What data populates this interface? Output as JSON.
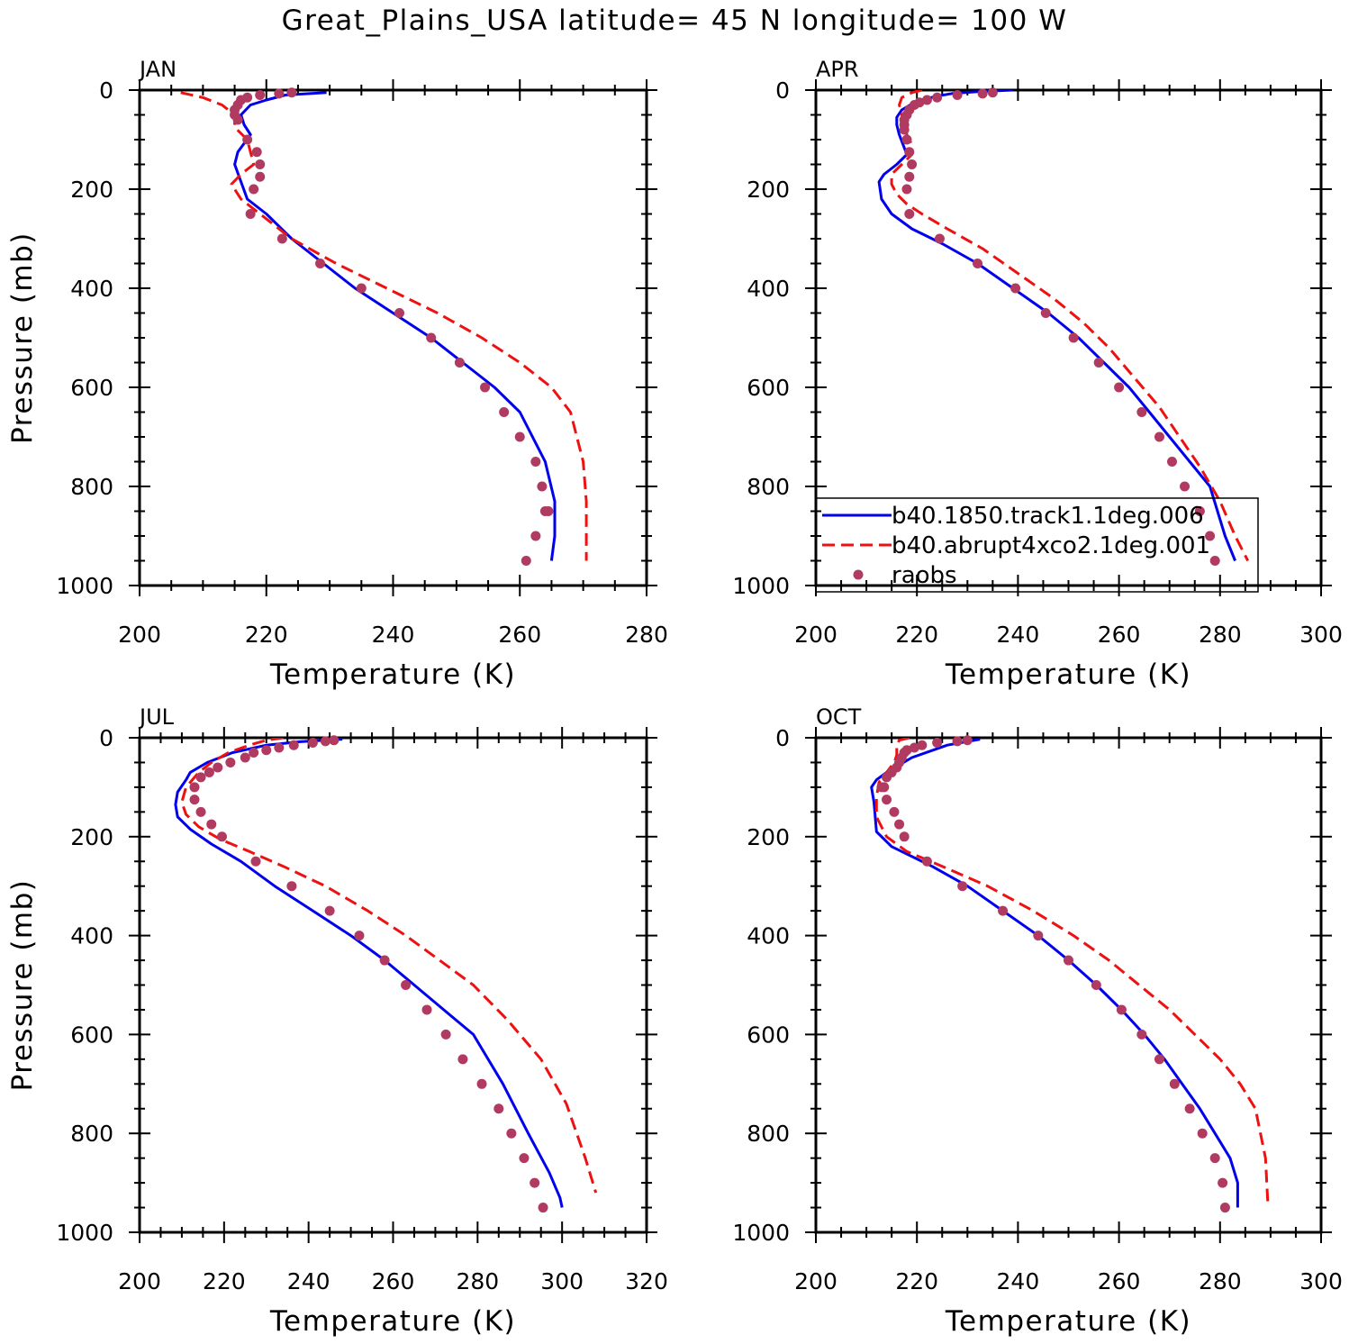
{
  "title": "Great_Plains_USA  latitude= 45 N longitude= 100 W",
  "legend": {
    "entries": [
      {
        "label": "b40.1850.track1.1deg.006",
        "color": "#0000ee",
        "style": "solid"
      },
      {
        "label": "b40.abrupt4xco2.1deg.001",
        "color": "#ee1111",
        "style": "dashed"
      },
      {
        "label": "raobs",
        "color": "#b03a60",
        "style": "marker"
      }
    ]
  },
  "chart_data": [
    {
      "type": "line",
      "panel": "JAN",
      "xlabel": "Temperature (K)",
      "ylabel": "Pressure (mb)",
      "xlim": [
        200,
        280
      ],
      "ylim": [
        1000,
        0
      ],
      "y_inverted": true,
      "xticks": [
        200,
        220,
        240,
        260,
        280
      ],
      "yticks": [
        0,
        200,
        400,
        600,
        800,
        1000
      ],
      "series": [
        {
          "name": "b40.1850.track1.1deg.006",
          "x": [
            229.5,
            223,
            220,
            217.5,
            216,
            216.5,
            217.5,
            215.5,
            215,
            217,
            220,
            224,
            229,
            234,
            240,
            246,
            251,
            256,
            260,
            264,
            265.5,
            265.5,
            265
          ],
          "y": [
            5,
            10,
            20,
            30,
            50,
            70,
            90,
            125,
            150,
            220,
            250,
            300,
            350,
            400,
            450,
            500,
            550,
            600,
            650,
            750,
            830,
            900,
            950
          ]
        },
        {
          "name": "b40.abrupt4xco2.1deg.001",
          "x": [
            206.5,
            210,
            213,
            215,
            215,
            217,
            218,
            216,
            214.5,
            216,
            219,
            224,
            231,
            239,
            247,
            254,
            260,
            265,
            268,
            270,
            270.5,
            270.5
          ],
          "y": [
            5,
            15,
            30,
            50,
            75,
            100,
            150,
            170,
            190,
            220,
            250,
            300,
            350,
            400,
            450,
            500,
            550,
            600,
            650,
            750,
            830,
            950
          ]
        },
        {
          "name": "raobs",
          "x": [
            224,
            222,
            219,
            217,
            216,
            215.5,
            215,
            215,
            215.5,
            217,
            218.5,
            219,
            219,
            218,
            217.5,
            222.5,
            228.5,
            235,
            241,
            246,
            250.5,
            254.5,
            257.5,
            260,
            262.5,
            263.5,
            264,
            264.5,
            262.5,
            261
          ],
          "y": [
            5,
            7,
            10,
            15,
            20,
            30,
            40,
            50,
            60,
            100,
            125,
            150,
            175,
            200,
            250,
            300,
            350,
            400,
            450,
            500,
            550,
            600,
            650,
            700,
            750,
            800,
            850,
            850,
            900,
            950
          ]
        }
      ]
    },
    {
      "type": "line",
      "panel": "APR",
      "xlabel": "Temperature (K)",
      "ylabel": "",
      "xlim": [
        200,
        300
      ],
      "ylim": [
        1000,
        0
      ],
      "y_inverted": true,
      "xticks": [
        200,
        220,
        240,
        260,
        280,
        300
      ],
      "yticks": [
        0,
        200,
        400,
        600,
        800,
        1000
      ],
      "series": [
        {
          "name": "b40.1850.track1.1deg.006",
          "x": [
            239,
            232,
            227,
            224,
            221,
            219,
            217,
            216,
            216,
            216.5,
            218,
            216,
            213.5,
            212.5,
            213,
            215,
            219,
            225,
            232,
            239,
            246,
            252,
            257,
            262,
            266,
            270,
            274,
            278,
            281,
            283
          ],
          "y": [
            0,
            3,
            7,
            12,
            20,
            28,
            40,
            55,
            70,
            90,
            130,
            150,
            170,
            185,
            220,
            250,
            280,
            310,
            350,
            400,
            450,
            500,
            550,
            600,
            650,
            700,
            750,
            800,
            900,
            950
          ]
        },
        {
          "name": "b40.abrupt4xco2.1deg.001",
          "x": [
            221,
            219,
            217,
            216.5,
            217,
            217.5,
            218,
            219,
            219,
            217,
            215,
            215,
            216,
            218,
            221,
            226,
            233,
            240,
            247,
            253,
            258,
            263,
            268,
            272,
            276,
            280,
            283,
            285.5
          ],
          "y": [
            0,
            5,
            15,
            30,
            50,
            70,
            90,
            110,
            130,
            150,
            170,
            190,
            210,
            230,
            250,
            280,
            320,
            370,
            420,
            470,
            520,
            580,
            640,
            700,
            760,
            830,
            900,
            950
          ]
        },
        {
          "name": "raobs",
          "x": [
            235,
            233,
            228,
            224,
            222,
            220.5,
            219.5,
            218.5,
            218,
            217.5,
            217.5,
            217.5,
            218,
            218.5,
            219,
            218.5,
            218,
            218.5,
            224.5,
            232,
            239.5,
            245.5,
            251,
            256,
            260,
            264.5,
            268,
            270.5,
            273,
            276,
            278,
            279
          ],
          "y": [
            5,
            7,
            10,
            15,
            20,
            25,
            30,
            40,
            50,
            60,
            70,
            80,
            100,
            125,
            150,
            175,
            200,
            250,
            300,
            350,
            400,
            450,
            500,
            550,
            600,
            650,
            700,
            750,
            800,
            850,
            900,
            950
          ]
        }
      ]
    },
    {
      "type": "line",
      "panel": "JUL",
      "xlabel": "Temperature (K)",
      "ylabel": "Pressure (mb)",
      "xlim": [
        200,
        320
      ],
      "ylim": [
        1000,
        0
      ],
      "y_inverted": true,
      "xticks": [
        200,
        220,
        240,
        260,
        280,
        300,
        320
      ],
      "yticks": [
        0,
        200,
        400,
        600,
        800,
        1000
      ],
      "series": [
        {
          "name": "b40.1850.track1.1deg.006",
          "x": [
            248,
            238,
            230,
            222,
            216,
            212,
            211,
            209,
            208.5,
            209,
            212,
            217,
            224,
            232,
            241,
            250,
            258,
            265,
            272,
            279,
            286,
            292,
            297,
            299.5,
            300
          ],
          "y": [
            3,
            8,
            15,
            30,
            50,
            70,
            85,
            110,
            135,
            160,
            185,
            215,
            250,
            300,
            350,
            400,
            450,
            500,
            550,
            600,
            700,
            800,
            880,
            930,
            950
          ]
        },
        {
          "name": "b40.abrupt4xco2.1deg.001",
          "x": [
            234,
            230,
            226,
            221,
            217,
            214,
            211,
            210,
            211,
            214,
            219,
            226,
            234,
            244,
            254,
            263,
            271,
            279,
            287,
            295,
            301,
            305.5,
            308
          ],
          "y": [
            0,
            5,
            15,
            30,
            50,
            70,
            100,
            130,
            155,
            180,
            205,
            230,
            260,
            300,
            350,
            400,
            450,
            500,
            570,
            650,
            740,
            850,
            920
          ]
        },
        {
          "name": "raobs",
          "x": [
            246,
            244,
            241,
            236.5,
            233,
            230,
            227,
            225,
            221.5,
            218.5,
            216.5,
            214.5,
            213,
            213,
            214.5,
            217,
            219.5,
            227.5,
            236,
            245,
            252,
            258,
            263,
            268,
            272.5,
            276.5,
            281,
            285,
            288,
            291,
            293.5,
            295.5
          ],
          "y": [
            5,
            7,
            10,
            15,
            20,
            25,
            30,
            40,
            50,
            60,
            70,
            80,
            100,
            125,
            150,
            175,
            200,
            250,
            300,
            350,
            400,
            450,
            500,
            550,
            600,
            650,
            700,
            750,
            800,
            850,
            900,
            950
          ]
        }
      ]
    },
    {
      "type": "line",
      "panel": "OCT",
      "xlabel": "Temperature (K)",
      "ylabel": "",
      "xlim": [
        200,
        300
      ],
      "ylim": [
        1000,
        0
      ],
      "y_inverted": true,
      "xticks": [
        200,
        220,
        240,
        260,
        280,
        300
      ],
      "yticks": [
        0,
        200,
        400,
        600,
        800,
        1000
      ],
      "series": [
        {
          "name": "b40.1850.track1.1deg.006",
          "x": [
            232.5,
            226,
            219,
            214,
            212,
            211,
            211.5,
            212,
            215,
            223,
            230,
            237,
            244,
            250,
            255.5,
            260.5,
            265,
            269,
            272.5,
            276,
            279,
            282,
            283.5,
            283.5
          ],
          "y": [
            3,
            15,
            40,
            70,
            85,
            100,
            130,
            190,
            220,
            260,
            300,
            350,
            400,
            450,
            500,
            550,
            600,
            650,
            700,
            750,
            800,
            850,
            900,
            950
          ]
        },
        {
          "name": "b40.abrupt4xco2.1deg.001",
          "x": [
            218.5,
            216.5,
            216,
            216,
            216,
            215.5,
            214,
            212.5,
            212,
            212,
            214,
            218,
            225,
            234,
            243,
            251,
            258,
            264,
            270,
            275,
            280,
            284,
            287,
            289,
            289.5
          ],
          "y": [
            0,
            5,
            15,
            25,
            35,
            50,
            70,
            90,
            120,
            160,
            200,
            230,
            260,
            300,
            350,
            400,
            450,
            500,
            550,
            600,
            650,
            700,
            750,
            850,
            950
          ]
        },
        {
          "name": "raobs",
          "x": [
            230,
            228,
            224,
            221,
            219.5,
            218,
            217.5,
            217,
            216.5,
            216,
            215,
            214,
            213.5,
            213,
            214,
            215.5,
            216.5,
            217.5,
            222,
            229,
            237,
            244,
            250,
            255.5,
            260.5,
            264.5,
            268,
            271,
            274,
            276.5,
            279,
            280.5,
            281
          ],
          "y": [
            5,
            7,
            10,
            15,
            20,
            25,
            30,
            40,
            50,
            60,
            70,
            80,
            100,
            100,
            125,
            150,
            175,
            200,
            250,
            300,
            350,
            400,
            450,
            500,
            550,
            600,
            650,
            700,
            750,
            800,
            850,
            900,
            950
          ]
        }
      ]
    }
  ]
}
